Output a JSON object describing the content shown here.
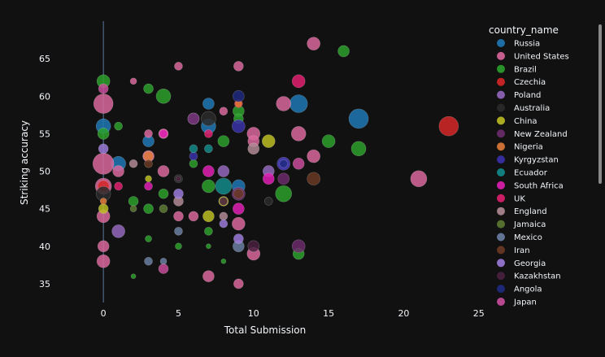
{
  "chart_data": {
    "type": "scatter",
    "xlabel": "Total Submission",
    "ylabel": "Striking accuracy",
    "xlim": [
      -2.5,
      25.5
    ],
    "ylim": [
      32.5,
      70
    ],
    "x_ticks": [
      0,
      5,
      10,
      15,
      20,
      25
    ],
    "y_ticks": [
      35,
      40,
      45,
      50,
      55,
      60,
      65
    ],
    "grid": false,
    "legend_title": "country_name",
    "legend_position": "right",
    "series": [
      {
        "name": "Russia",
        "color": "#1f77b4",
        "points": [
          [
            0,
            56,
            9
          ],
          [
            1,
            51,
            9
          ],
          [
            3,
            54,
            7
          ],
          [
            7,
            56,
            9
          ],
          [
            7,
            59,
            7
          ],
          [
            13,
            59,
            11
          ],
          [
            17,
            57,
            12
          ],
          [
            9,
            48,
            8
          ]
        ]
      },
      {
        "name": "United States",
        "color": "#d9679c",
        "points": [
          [
            0,
            59,
            12
          ],
          [
            0,
            51,
            13
          ],
          [
            0,
            48,
            10
          ],
          [
            0,
            44,
            8
          ],
          [
            0,
            40,
            7
          ],
          [
            0,
            38,
            8
          ],
          [
            1,
            50,
            7
          ],
          [
            2,
            62,
            4
          ],
          [
            3,
            55,
            5
          ],
          [
            3,
            52,
            7
          ],
          [
            4,
            55,
            6
          ],
          [
            4,
            50,
            7
          ],
          [
            5,
            64,
            5
          ],
          [
            5,
            44,
            6
          ],
          [
            6,
            44,
            6
          ],
          [
            8,
            58,
            5
          ],
          [
            9,
            64,
            6
          ],
          [
            9,
            43,
            8
          ],
          [
            10,
            55,
            8
          ],
          [
            10,
            54,
            7
          ],
          [
            10,
            39,
            8
          ],
          [
            12,
            59,
            9
          ],
          [
            13,
            55,
            9
          ],
          [
            14,
            67,
            8
          ],
          [
            14,
            52,
            8
          ],
          [
            21,
            49,
            10
          ],
          [
            7,
            36,
            7
          ],
          [
            9,
            35,
            6
          ]
        ]
      },
      {
        "name": "Brazil",
        "color": "#2ca02c",
        "points": [
          [
            0,
            62,
            8
          ],
          [
            0,
            55,
            7
          ],
          [
            1,
            56,
            5
          ],
          [
            2,
            46,
            6
          ],
          [
            3,
            61,
            6
          ],
          [
            3,
            45,
            6
          ],
          [
            4,
            60,
            9
          ],
          [
            4,
            47,
            6
          ],
          [
            5,
            40,
            4
          ],
          [
            6,
            51,
            5
          ],
          [
            7,
            48,
            8
          ],
          [
            7,
            42,
            5
          ],
          [
            8,
            54,
            7
          ],
          [
            9,
            58,
            7
          ],
          [
            9,
            57,
            6
          ],
          [
            12,
            47,
            10
          ],
          [
            13,
            39,
            7
          ],
          [
            15,
            54,
            8
          ],
          [
            16,
            66,
            7
          ],
          [
            17,
            53,
            9
          ],
          [
            3,
            41,
            4
          ],
          [
            2,
            36,
            3
          ],
          [
            8,
            38,
            3
          ],
          [
            7,
            40,
            3
          ]
        ]
      },
      {
        "name": "Czechia",
        "color": "#d62728",
        "points": [
          [
            23,
            56,
            12
          ],
          [
            0,
            48,
            7
          ],
          [
            9,
            59,
            5
          ]
        ]
      },
      {
        "name": "Poland",
        "color": "#9467bd",
        "points": [
          [
            1,
            42,
            8
          ],
          [
            6,
            57,
            7
          ],
          [
            8,
            50,
            7
          ],
          [
            11,
            50,
            7
          ],
          [
            12,
            51,
            7
          ]
        ]
      },
      {
        "name": "Australia",
        "color": "#2b2b2b",
        "points": [
          [
            0,
            47,
            9
          ],
          [
            7,
            57,
            9
          ],
          [
            5,
            49,
            5
          ],
          [
            11,
            46,
            5
          ]
        ]
      },
      {
        "name": "China",
        "color": "#bcbd22",
        "points": [
          [
            3,
            49,
            4
          ],
          [
            7,
            44,
            7
          ],
          [
            8,
            46,
            6
          ],
          [
            11,
            54,
            8
          ],
          [
            0,
            45,
            6
          ]
        ]
      },
      {
        "name": "New Zealand",
        "color": "#6b2c6b",
        "points": [
          [
            6,
            57,
            7
          ],
          [
            9,
            47,
            8
          ],
          [
            12,
            49,
            7
          ],
          [
            13,
            40,
            8
          ]
        ]
      },
      {
        "name": "Nigeria",
        "color": "#e07b39",
        "points": [
          [
            3,
            52,
            6
          ],
          [
            0,
            46,
            4
          ],
          [
            9,
            59,
            4
          ]
        ]
      },
      {
        "name": "Kyrgyzstan",
        "color": "#3a31a8",
        "points": [
          [
            9,
            56,
            8
          ],
          [
            12,
            51,
            8
          ],
          [
            6,
            52,
            5
          ]
        ]
      },
      {
        "name": "Ecuador",
        "color": "#138a8a",
        "points": [
          [
            8,
            48,
            10
          ],
          [
            6,
            53,
            5
          ],
          [
            7,
            53,
            5
          ]
        ]
      },
      {
        "name": "South Africa",
        "color": "#e01fb4",
        "points": [
          [
            4,
            55,
            5
          ],
          [
            3,
            48,
            5
          ],
          [
            7,
            50,
            7
          ],
          [
            11,
            49,
            7
          ],
          [
            9,
            45,
            7
          ]
        ]
      },
      {
        "name": "UK",
        "color": "#e0206e",
        "points": [
          [
            13,
            62,
            8
          ],
          [
            7,
            55,
            5
          ],
          [
            1,
            48,
            5
          ]
        ]
      },
      {
        "name": "England",
        "color": "#b08a95",
        "points": [
          [
            10,
            53,
            7
          ],
          [
            5,
            46,
            6
          ],
          [
            2,
            51,
            5
          ],
          [
            8,
            44,
            5
          ]
        ]
      },
      {
        "name": "Jamaica",
        "color": "#5d7a32",
        "points": [
          [
            4,
            45,
            5
          ],
          [
            2,
            45,
            4
          ]
        ]
      },
      {
        "name": "Mexico",
        "color": "#6b7fa3",
        "points": [
          [
            5,
            42,
            5
          ],
          [
            9,
            40,
            7
          ],
          [
            3,
            38,
            5
          ],
          [
            4,
            38,
            4
          ]
        ]
      },
      {
        "name": "Iran",
        "color": "#6a3a24",
        "points": [
          [
            14,
            49,
            8
          ],
          [
            9,
            47,
            6
          ],
          [
            3,
            51,
            5
          ]
        ]
      },
      {
        "name": "Georgia",
        "color": "#9b7ad9",
        "points": [
          [
            9,
            41,
            6
          ],
          [
            0,
            53,
            6
          ],
          [
            8,
            43,
            5
          ],
          [
            5,
            47,
            6
          ]
        ]
      },
      {
        "name": "Kazakhstan",
        "color": "#4a2140",
        "points": [
          [
            5,
            49,
            3
          ],
          [
            10,
            40,
            7
          ],
          [
            8,
            46,
            5
          ]
        ]
      },
      {
        "name": "Angola",
        "color": "#1f2a80",
        "points": [
          [
            9,
            60,
            7
          ],
          [
            12,
            51,
            5
          ]
        ]
      },
      {
        "name": "Japan",
        "color": "#c94c9b",
        "points": [
          [
            0,
            61,
            6
          ],
          [
            4,
            37,
            6
          ],
          [
            13,
            51,
            7
          ]
        ]
      }
    ]
  }
}
